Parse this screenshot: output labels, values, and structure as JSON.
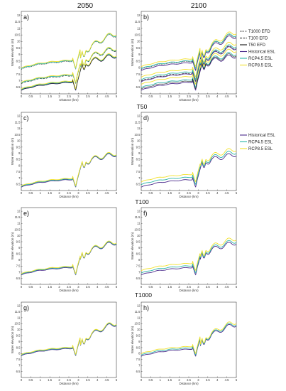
{
  "figure": {
    "columns": [
      "2050",
      "2100"
    ],
    "rows": [
      "",
      "T50",
      "T100",
      "T1000"
    ],
    "legend_top": [
      {
        "label": "T1000 EFD",
        "color": "#111111",
        "dash": "1.2,1.2"
      },
      {
        "label": "T100 EFD",
        "color": "#111111",
        "dash": "3,1.5"
      },
      {
        "label": "T50 EFD",
        "color": "#111111",
        "dash": ""
      },
      {
        "label": "Historical ESL",
        "color": "#4b2a8c",
        "dash": ""
      },
      {
        "label": "RCP4.5 ESL",
        "color": "#2bb5a8",
        "dash": ""
      },
      {
        "label": "RCP8.5 ESL",
        "color": "#f2e12b",
        "dash": ""
      }
    ],
    "legend_mid": [
      {
        "label": "Historical ESL",
        "color": "#4b2a8c"
      },
      {
        "label": "RCP4.5 ESL",
        "color": "#2bb5a8"
      },
      {
        "label": "RCP8.5 ESL",
        "color": "#f2e12b"
      }
    ]
  },
  "chart_data": [
    {
      "type": "line",
      "label": "a)",
      "xlabel": "Distance (km)",
      "ylabel": "Water elevation (m)",
      "xlim": [
        0,
        5
      ],
      "ylim": [
        6,
        12.3
      ],
      "xticks": [
        0,
        0.5,
        1,
        1.5,
        2,
        2.5,
        3,
        3.5,
        4,
        4.5,
        5
      ],
      "yticks": [
        6.5,
        7,
        7.5,
        8,
        8.5,
        9,
        9.5,
        10,
        10.5,
        11,
        11.5,
        12
      ],
      "base_offsets": [
        0,
        0.5,
        1.6
      ],
      "series": [
        {
          "color": "#4b2a8c",
          "offset": 0
        },
        {
          "color": "#2bb5a8",
          "offset": 0.05
        },
        {
          "color": "#f2e12b",
          "offset": 0.1
        },
        {
          "color": "#111111",
          "offset": 0,
          "dash": ""
        },
        {
          "color": "#111111",
          "offset": 0.5,
          "dash": "3,1.5"
        },
        {
          "color": "#111111",
          "offset": 1.6,
          "dash": "1.2,1.2"
        },
        {
          "color": "#2bb5a8",
          "offset": 0.55
        },
        {
          "color": "#f2e12b",
          "offset": 0.6
        },
        {
          "color": "#2bb5a8",
          "offset": 1.65
        },
        {
          "color": "#f2e12b",
          "offset": 1.7
        }
      ]
    },
    {
      "type": "line",
      "label": "b)",
      "xlabel": "Distance (km)",
      "ylabel": "Water elevation (m)",
      "xlim": [
        0,
        5
      ],
      "ylim": [
        6,
        12.3
      ],
      "xticks": [
        0,
        0.5,
        1,
        1.5,
        2,
        2.5,
        3,
        3.5,
        4,
        4.5,
        5
      ],
      "yticks": [
        6.5,
        7,
        7.5,
        8,
        8.5,
        9,
        9.5,
        10,
        10.5,
        11,
        11.5,
        12
      ],
      "series": [
        {
          "color": "#4b2a8c",
          "offset": 0
        },
        {
          "color": "#2bb5a8",
          "offset": 0.2
        },
        {
          "color": "#f2e12b",
          "offset": 0.45
        },
        {
          "color": "#111111",
          "offset": 0.1,
          "dash": ""
        },
        {
          "color": "#111111",
          "offset": 0.7,
          "dash": "3,1.5"
        },
        {
          "color": "#111111",
          "offset": 1.6,
          "dash": "1.2,1.2"
        },
        {
          "color": "#4b2a8c",
          "offset": 0.65
        },
        {
          "color": "#2bb5a8",
          "offset": 0.8
        },
        {
          "color": "#f2e12b",
          "offset": 1.0
        },
        {
          "color": "#4b2a8c",
          "offset": 1.5
        },
        {
          "color": "#2bb5a8",
          "offset": 1.65
        },
        {
          "color": "#f2e12b",
          "offset": 1.8
        }
      ]
    },
    {
      "type": "line",
      "label": "c)",
      "xlabel": "Distance (km)",
      "ylabel": "Water elevation (m)",
      "xlim": [
        0,
        5
      ],
      "ylim": [
        6,
        12.3
      ],
      "xticks": [
        0,
        0.5,
        1,
        1.5,
        2,
        2.5,
        3,
        3.5,
        4,
        4.5,
        5
      ],
      "yticks": [
        6.5,
        7,
        7.5,
        8,
        8.5,
        9,
        9.5,
        10,
        10.5,
        11,
        11.5,
        12
      ],
      "series": [
        {
          "color": "#4b2a8c",
          "offset": 0
        },
        {
          "color": "#2bb5a8",
          "offset": 0.05
        },
        {
          "color": "#f2e12b",
          "offset": 0.1
        }
      ]
    },
    {
      "type": "line",
      "label": "d)",
      "xlabel": "Distance (km)",
      "ylabel": "Water elevation (m)",
      "xlim": [
        0,
        5
      ],
      "ylim": [
        6,
        12.3
      ],
      "xticks": [
        0,
        0.5,
        1,
        1.5,
        2,
        2.5,
        3,
        3.5,
        4,
        4.5,
        5
      ],
      "yticks": [
        6.5,
        7,
        7.5,
        8,
        8.5,
        9,
        9.5,
        10,
        10.5,
        11,
        11.5,
        12
      ],
      "series": [
        {
          "color": "#4b2a8c",
          "offset": 0
        },
        {
          "color": "#2bb5a8",
          "offset": 0.2
        },
        {
          "color": "#f2e12b",
          "offset": 0.42
        }
      ]
    },
    {
      "type": "line",
      "label": "e)",
      "xlabel": "Distance (km)",
      "ylabel": "Water elevation (m)",
      "xlim": [
        0,
        5
      ],
      "ylim": [
        6,
        12.3
      ],
      "xticks": [
        0,
        0.5,
        1,
        1.5,
        2,
        2.5,
        3,
        3.5,
        4,
        4.5,
        5
      ],
      "yticks": [
        6.5,
        7,
        7.5,
        8,
        8.5,
        9,
        9.5,
        10,
        10.5,
        11,
        11.5,
        12
      ],
      "series": [
        {
          "color": "#4b2a8c",
          "offset": 0.5
        },
        {
          "color": "#2bb5a8",
          "offset": 0.55
        },
        {
          "color": "#f2e12b",
          "offset": 0.6
        }
      ]
    },
    {
      "type": "line",
      "label": "f)",
      "xlabel": "Distance (km)",
      "ylabel": "Water elevation (m)",
      "xlim": [
        0,
        5
      ],
      "ylim": [
        6,
        12.3
      ],
      "xticks": [
        0,
        0.5,
        1,
        1.5,
        2,
        2.5,
        3,
        3.5,
        4,
        4.5,
        5
      ],
      "yticks": [
        6.5,
        7,
        7.5,
        8,
        8.5,
        9,
        9.5,
        10,
        10.5,
        11,
        11.5,
        12
      ],
      "series": [
        {
          "color": "#4b2a8c",
          "offset": 0.5
        },
        {
          "color": "#2bb5a8",
          "offset": 0.65
        },
        {
          "color": "#f2e12b",
          "offset": 0.85
        }
      ]
    },
    {
      "type": "line",
      "label": "g)",
      "xlabel": "Distance (km)",
      "ylabel": "Water elevation (m)",
      "xlim": [
        0,
        5
      ],
      "ylim": [
        6,
        12.3
      ],
      "xticks": [
        0,
        0.5,
        1,
        1.5,
        2,
        2.5,
        3,
        3.5,
        4,
        4.5,
        5
      ],
      "yticks": [
        6.5,
        7,
        7.5,
        8,
        8.5,
        9,
        9.5,
        10,
        10.5,
        11,
        11.5,
        12
      ],
      "series": [
        {
          "color": "#4b2a8c",
          "offset": 1.55
        },
        {
          "color": "#2bb5a8",
          "offset": 1.6
        },
        {
          "color": "#f2e12b",
          "offset": 1.65
        }
      ]
    },
    {
      "type": "line",
      "label": "h)",
      "xlabel": "Distance (km)",
      "ylabel": "Water elevation (m)",
      "xlim": [
        0,
        5
      ],
      "ylim": [
        6,
        12.3
      ],
      "xticks": [
        0,
        0.5,
        1,
        1.5,
        2,
        2.5,
        3,
        3.5,
        4,
        4.5,
        5
      ],
      "yticks": [
        6.5,
        7,
        7.5,
        8,
        8.5,
        9,
        9.5,
        10,
        10.5,
        11,
        11.5,
        12
      ],
      "series": [
        {
          "color": "#4b2a8c",
          "offset": 1.5
        },
        {
          "color": "#2bb5a8",
          "offset": 1.6
        },
        {
          "color": "#f2e12b",
          "offset": 1.72
        }
      ]
    }
  ]
}
